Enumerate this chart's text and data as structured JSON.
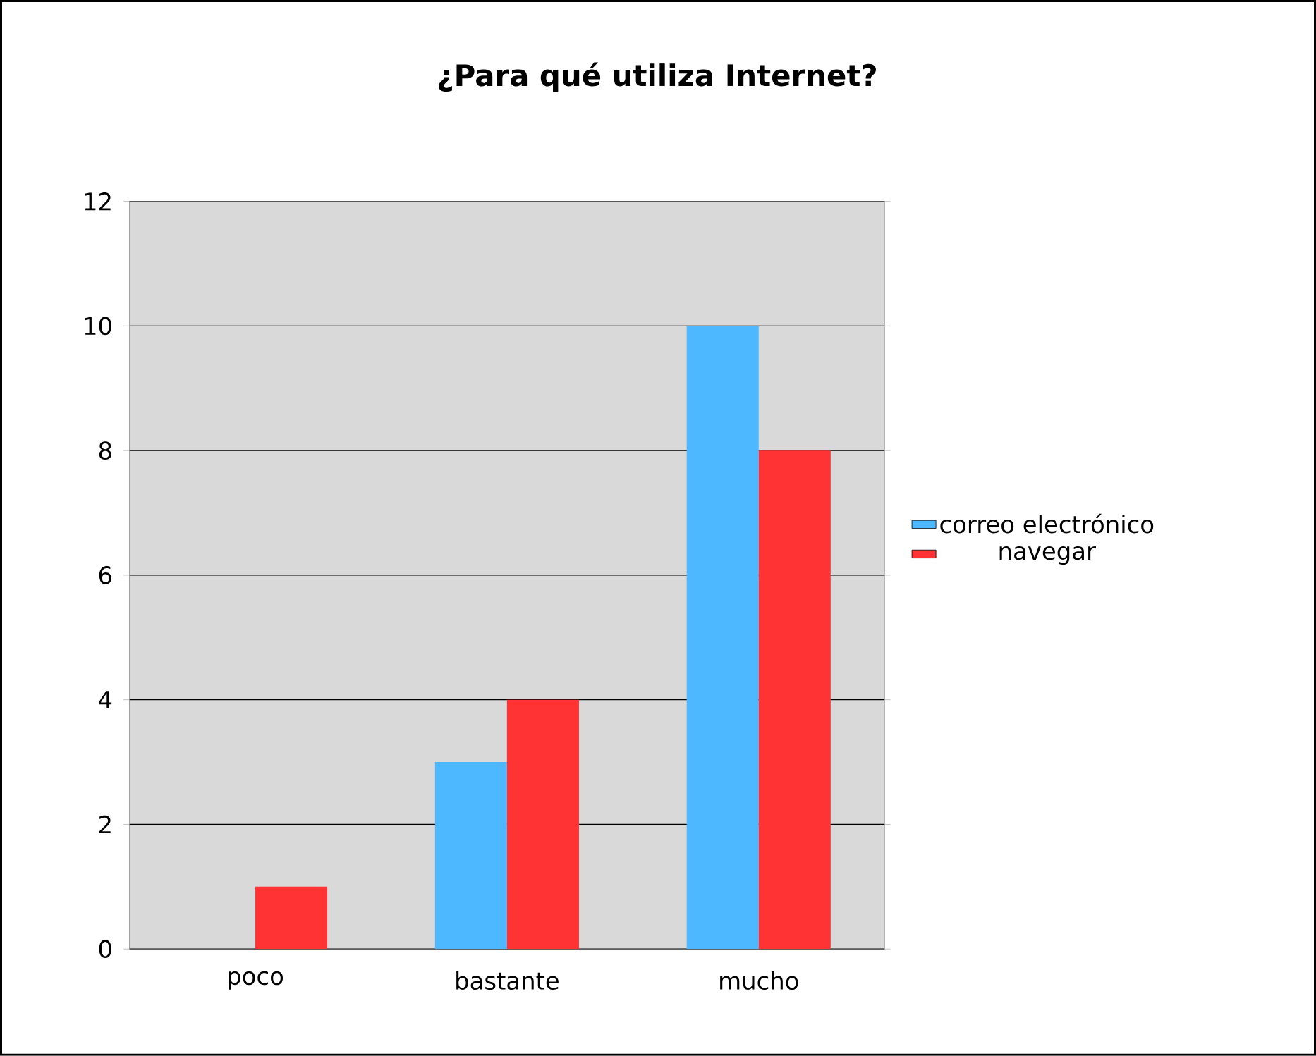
{
  "chart_data": {
    "type": "bar",
    "title": "¿Para qué utiliza Internet?",
    "categories": [
      "poco",
      "bastante",
      "mucho"
    ],
    "series": [
      {
        "name": "correo electrónico",
        "color": "#4db8ff",
        "values": [
          0,
          3,
          10
        ]
      },
      {
        "name": "navegar",
        "color": "#ff3333",
        "values": [
          1,
          4,
          8
        ]
      }
    ],
    "ylim": [
      0,
      12
    ],
    "yticks": [
      0,
      2,
      4,
      6,
      8,
      10,
      12
    ],
    "grid": "y",
    "legend": "right"
  }
}
